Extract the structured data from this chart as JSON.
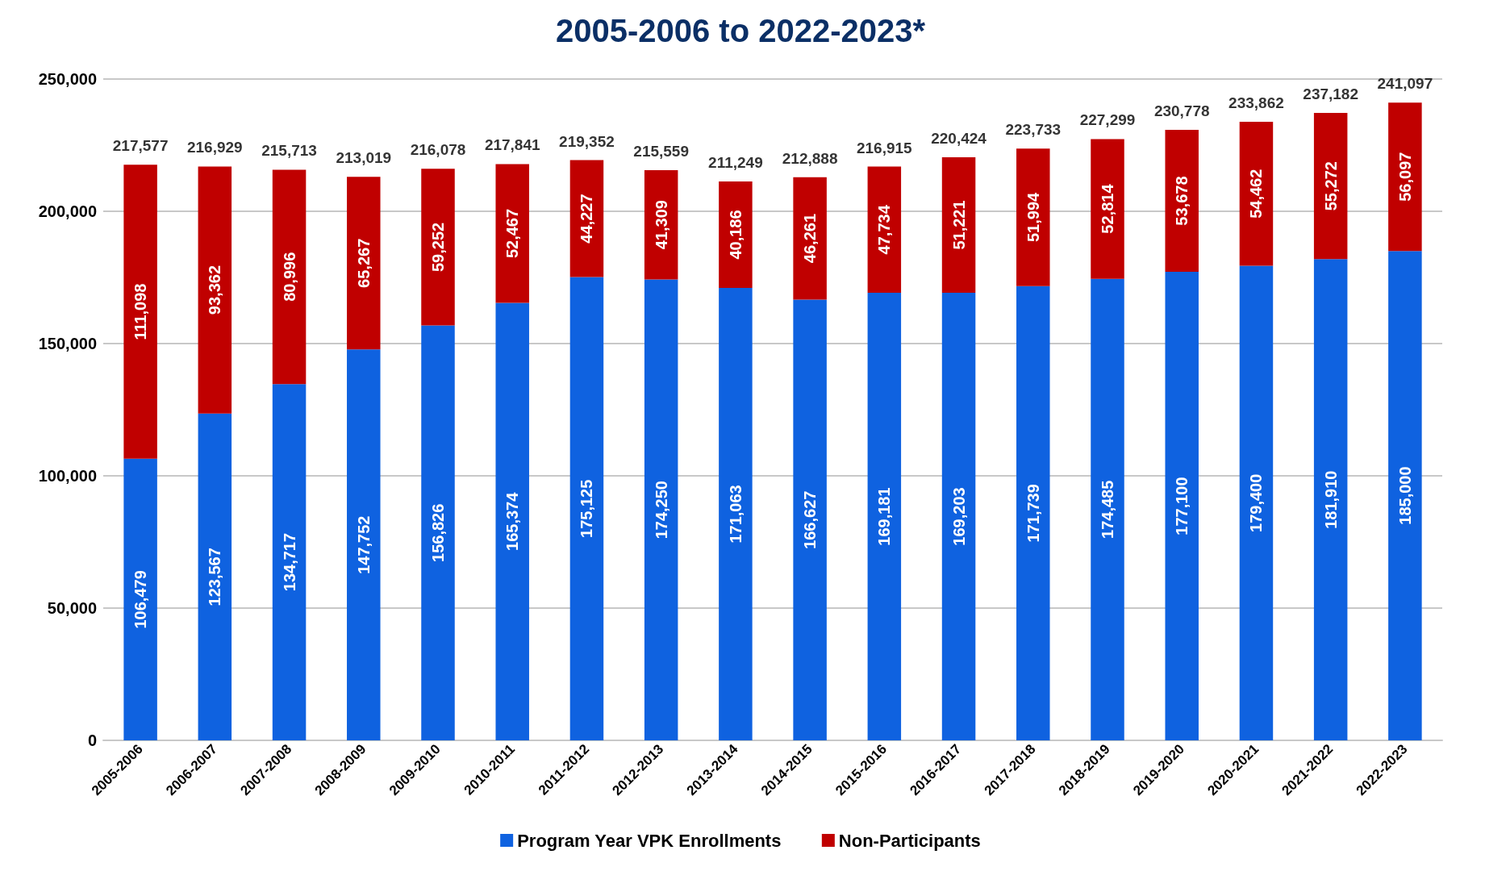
{
  "chart_data": {
    "type": "bar",
    "title": "2005-2006 to 2022-2023*",
    "stacked": true,
    "categories": [
      "2005-2006",
      "2006-2007",
      "2007-2008",
      "2008-2009",
      "2009-2010",
      "2010-2011",
      "2011-2012",
      "2012-2013",
      "2013-2014",
      "2014-2015",
      "2015-2016",
      "2016-2017",
      "2017-2018",
      "2018-2019",
      "2019-2020",
      "2020-2021",
      "2021-2022",
      "2022-2023"
    ],
    "series": [
      {
        "name": "Program Year VPK Enrollments",
        "color": "#0f62e0",
        "values": [
          106479,
          123567,
          134717,
          147752,
          156826,
          165374,
          175125,
          174250,
          171063,
          166627,
          169181,
          169203,
          171739,
          174485,
          177100,
          179400,
          181910,
          185000
        ],
        "value_labels": [
          "106,479",
          "123,567",
          "134,717",
          "147,752",
          "156,826",
          "165,374",
          "175,125",
          "174,250",
          "171,063",
          "166,627",
          "169,181",
          "169,203",
          "171,739",
          "174,485",
          "177,100",
          "179,400",
          "181,910",
          "185,000"
        ]
      },
      {
        "name": "Non-Participants",
        "color": "#c00000",
        "values": [
          111098,
          93362,
          80996,
          65267,
          59252,
          52467,
          44227,
          41309,
          40186,
          46261,
          47734,
          51221,
          51994,
          52814,
          53678,
          54462,
          55272,
          56097
        ],
        "value_labels": [
          "111,098",
          "93,362",
          "80,996",
          "65,267",
          "59,252",
          "52,467",
          "44,227",
          "41,309",
          "40,186",
          "46,261",
          "47,734",
          "51,221",
          "51,994",
          "52,814",
          "53,678",
          "54,462",
          "55,272",
          "56,097"
        ]
      }
    ],
    "totals": [
      "217,577",
      "216,929",
      "215,713",
      "213,019",
      "216,078",
      "217,841",
      "219,352",
      "215,559",
      "211,249",
      "212,888",
      "216,915",
      "220,424",
      "223,733",
      "227,299",
      "230,778",
      "233,862",
      "237,182",
      "241,097"
    ],
    "ylim": [
      0,
      250000
    ],
    "yticks": [
      0,
      {
        "value": 50000,
        "label": "50,000"
      },
      {
        "value": 100000,
        "label": "100,000"
      },
      {
        "value": 150000,
        "label": "150,000"
      },
      {
        "value": 200000,
        "label": "200,000"
      },
      {
        "value": 250000,
        "label": "250,000"
      }
    ],
    "grid": "y",
    "legend": "bottom"
  }
}
